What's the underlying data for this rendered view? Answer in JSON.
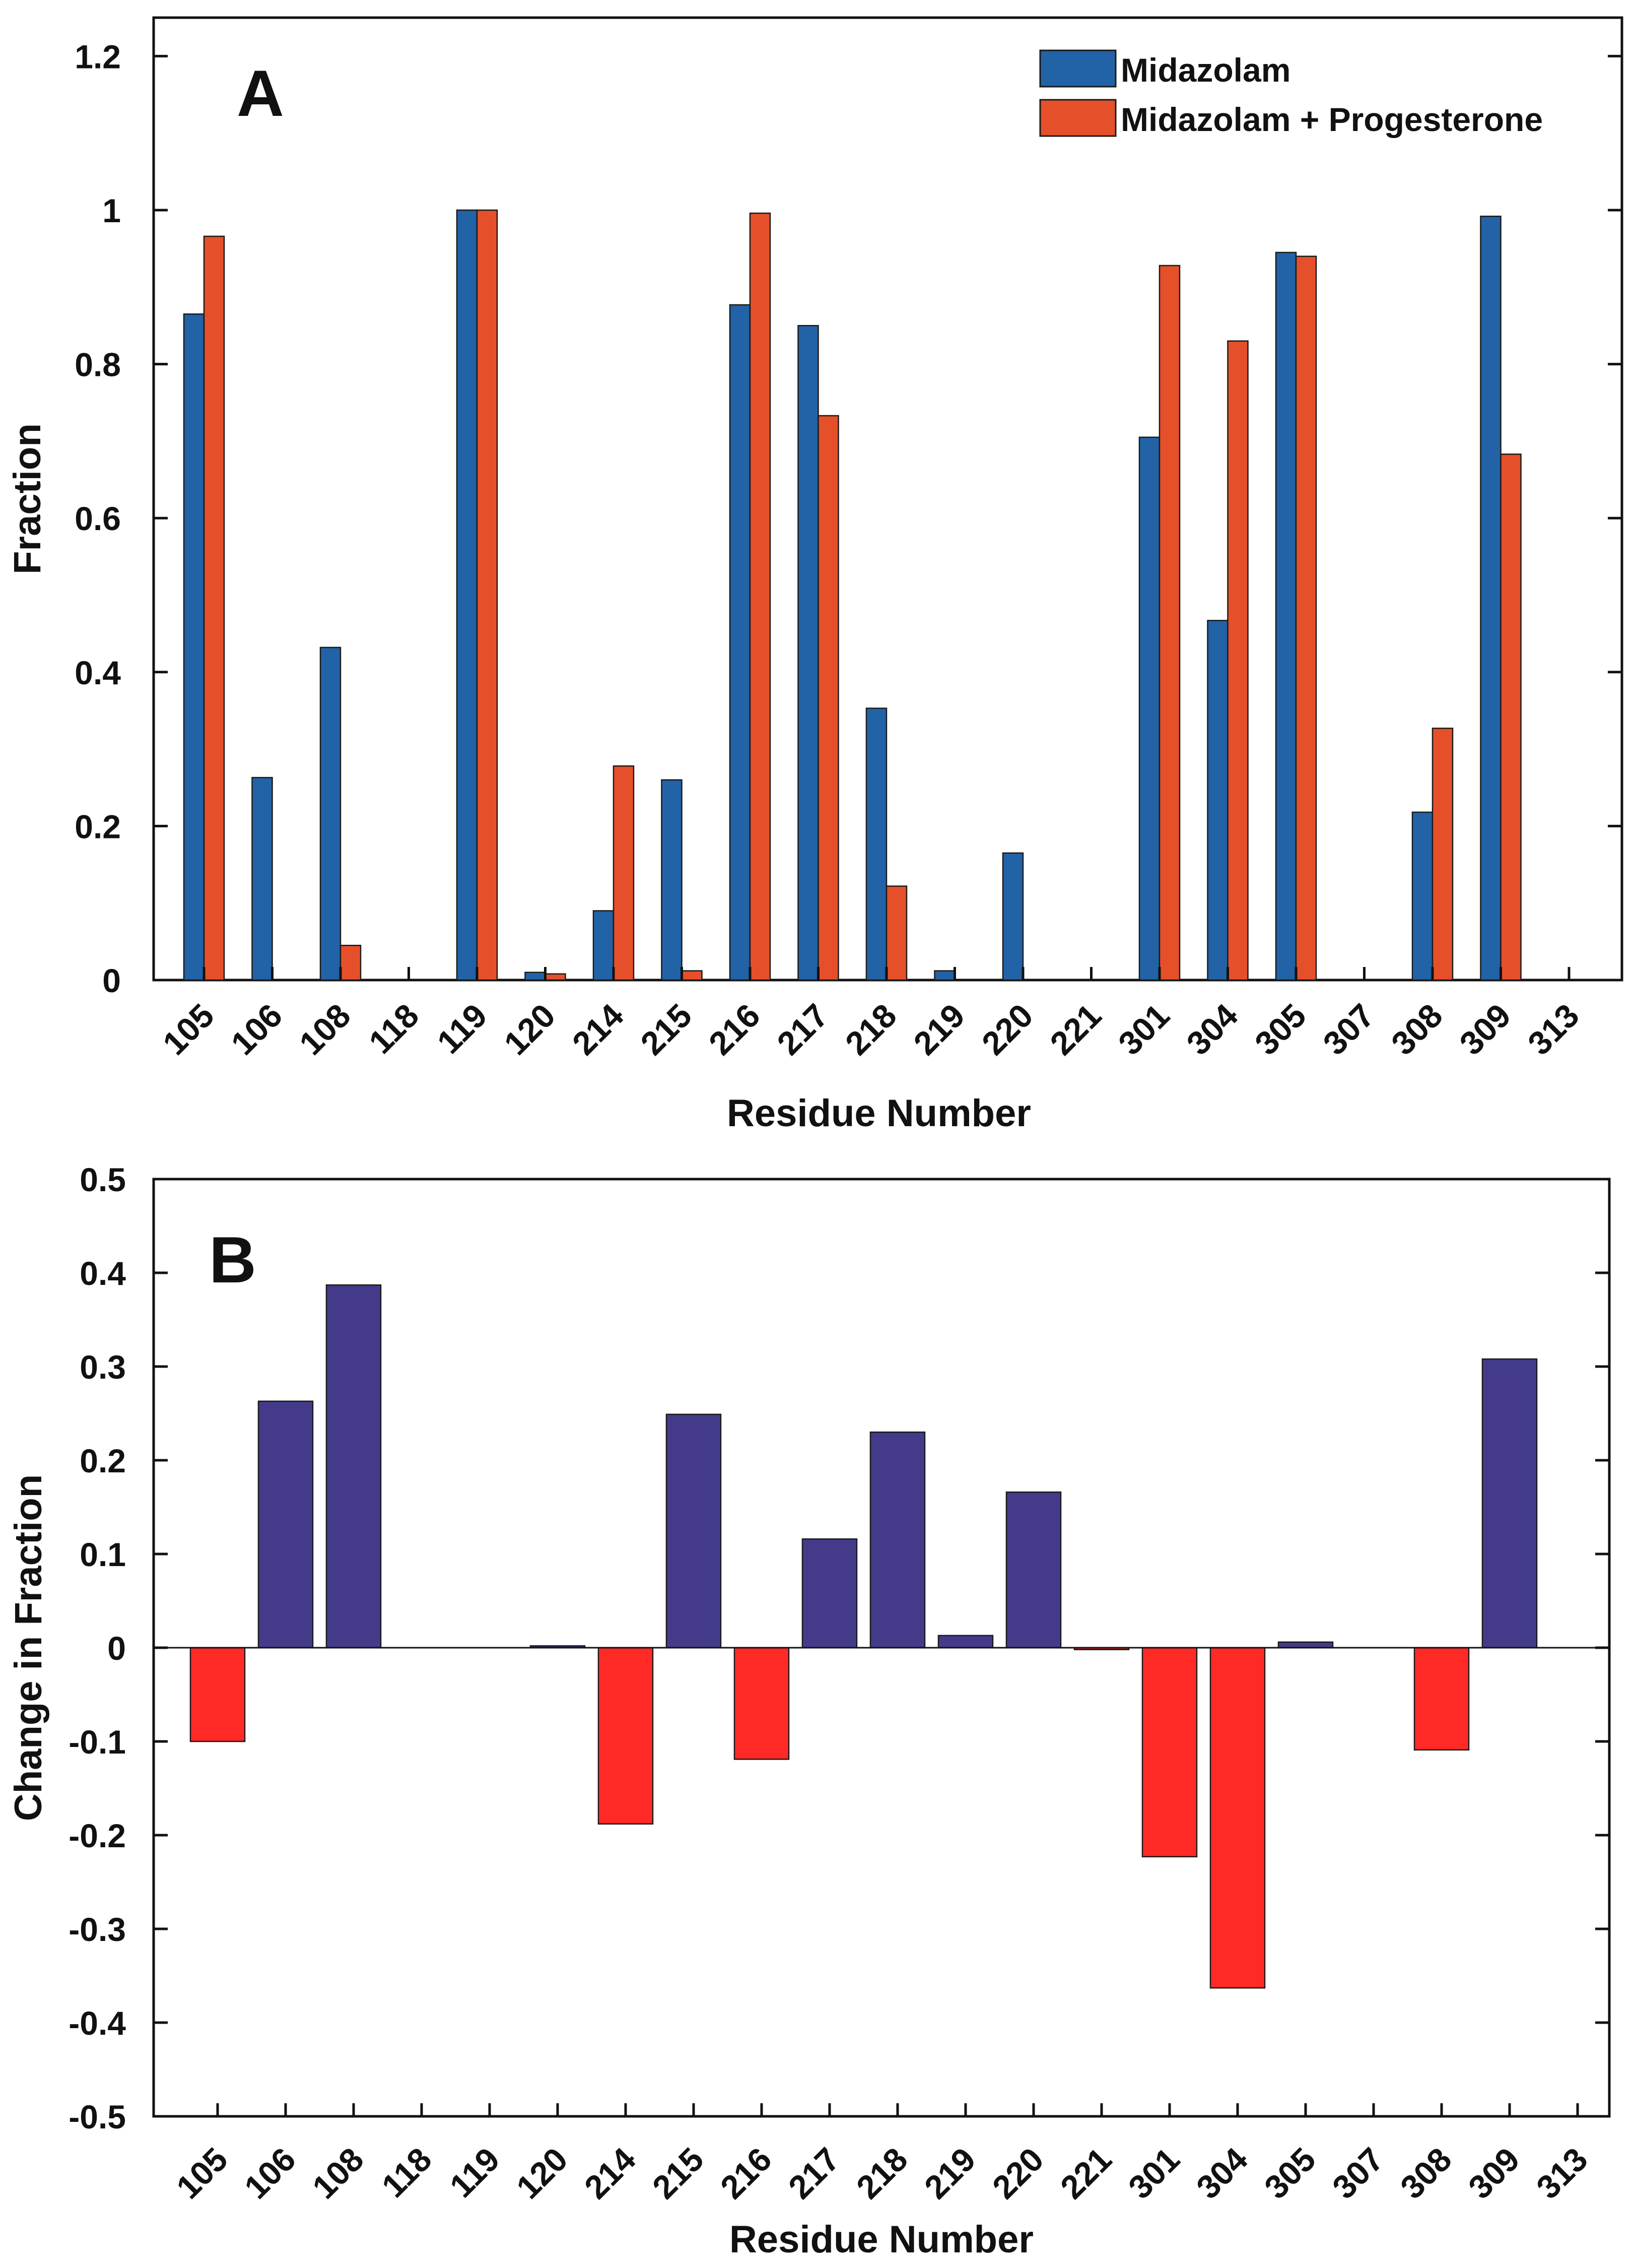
{
  "colors": {
    "midazolam": "#2262A7",
    "midazolam_progesterone": "#E5502A",
    "positive_change": "#433B8A",
    "negative_change": "#FF2A26",
    "axes": "#111111"
  },
  "chart_data": [
    {
      "type": "bar",
      "panel_label": "A",
      "categories": [
        "105",
        "106",
        "108",
        "118",
        "119",
        "120",
        "214",
        "215",
        "216",
        "217",
        "218",
        "219",
        "220",
        "221",
        "301",
        "304",
        "305",
        "307",
        "308",
        "309",
        "313"
      ],
      "series": [
        {
          "name": "Midazolam",
          "values": [
            0.865,
            0.263,
            0.432,
            0,
            1.0,
            0.01,
            0.09,
            0.26,
            0.877,
            0.85,
            0.353,
            0.012,
            0.165,
            0,
            0.705,
            0.467,
            0.945,
            0,
            0.218,
            0.992,
            0
          ]
        },
        {
          "name": "Midazolam + Progesterone",
          "values": [
            0.966,
            0,
            0.045,
            0,
            1.0,
            0.008,
            0.278,
            0.012,
            0.996,
            0.733,
            0.122,
            0,
            0,
            0,
            0.928,
            0.83,
            0.94,
            0,
            0.327,
            0.683,
            0
          ]
        }
      ],
      "xlabel": "Residue Number",
      "ylabel": "Fraction",
      "ylim": [
        0,
        1.25
      ],
      "yticks": [
        "0",
        "0.2",
        "0.4",
        "0.6",
        "0.8",
        "1",
        "1.2"
      ],
      "legend_position": "top-right"
    },
    {
      "type": "bar",
      "panel_label": "B",
      "categories": [
        "105",
        "106",
        "108",
        "118",
        "119",
        "120",
        "214",
        "215",
        "216",
        "217",
        "218",
        "219",
        "220",
        "221",
        "301",
        "304",
        "305",
        "307",
        "308",
        "309",
        "313"
      ],
      "values": [
        -0.1,
        0.263,
        0.387,
        0,
        0,
        0.002,
        -0.188,
        0.249,
        -0.119,
        0.116,
        0.23,
        0.013,
        0.166,
        -0.002,
        -0.223,
        -0.363,
        0.006,
        0,
        -0.109,
        0.308,
        0
      ],
      "xlabel": "Residue Number",
      "ylabel": "Change in Fraction",
      "ylim": [
        -0.5,
        0.5
      ],
      "yticks": [
        "-0.5",
        "-0.4",
        "-0.3",
        "-0.2",
        "-0.1",
        "0",
        "0.1",
        "0.2",
        "0.3",
        "0.4",
        "0.5"
      ]
    }
  ]
}
